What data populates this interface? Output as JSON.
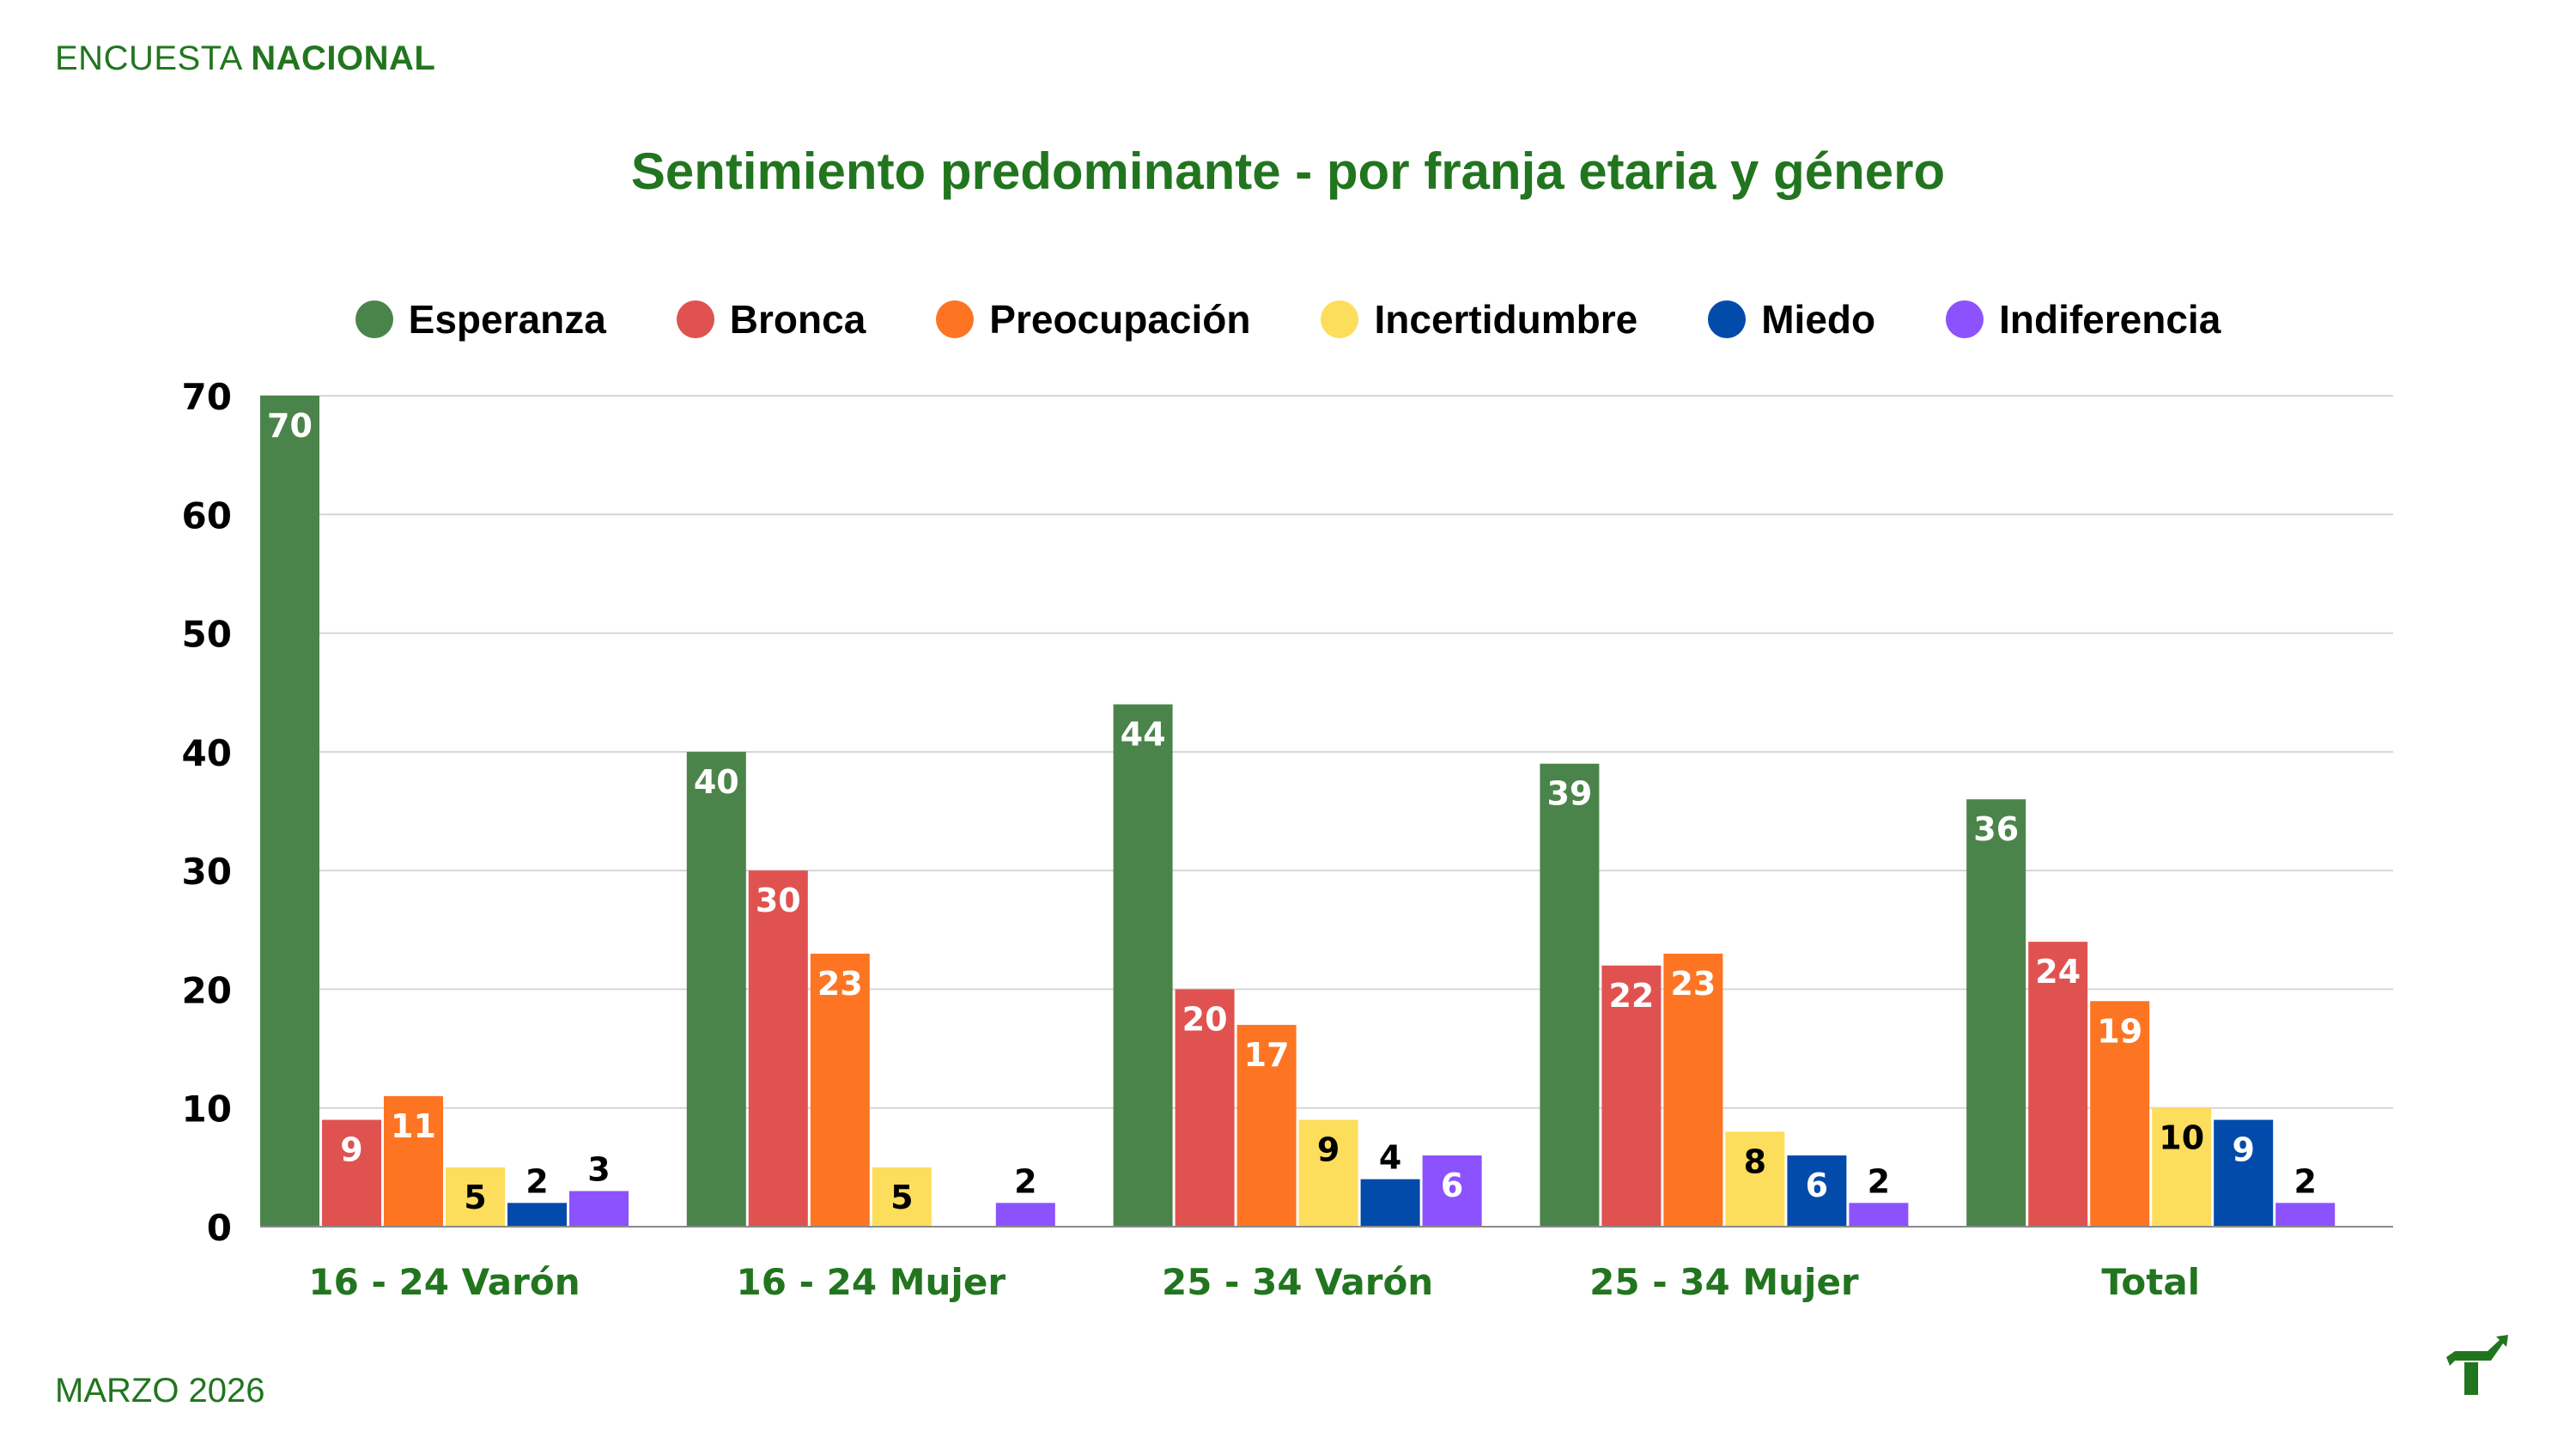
{
  "header": {
    "brand_light": "ENCUESTA",
    "brand_bold": "NACIONAL"
  },
  "footer": {
    "date": "MARZO 2026",
    "logo_icon": "trend-arrow-t-logo-icon"
  },
  "colors": {
    "brand_green": "#22751f",
    "grid": "#d6d6d6",
    "axis": "#8a8a8a"
  },
  "chart_data": {
    "type": "bar",
    "title": "Sentimiento predominante - por franja etaria y género",
    "xlabel": "",
    "ylabel": "",
    "ylim": [
      0,
      70
    ],
    "yticks": [
      0,
      10,
      20,
      30,
      40,
      50,
      60,
      70
    ],
    "grid": true,
    "legend_position": "top-center",
    "categories": [
      "16 - 24 Varón",
      "16 - 24 Mujer",
      "25 - 34 Varón",
      "25 - 34 Mujer",
      "Total"
    ],
    "series": [
      {
        "name": "Esperanza",
        "color": "#4b844a",
        "label_color": "#ffffff",
        "values": [
          70,
          40,
          44,
          39,
          36
        ]
      },
      {
        "name": "Bronca",
        "color": "#e05250",
        "label_color": "#ffffff",
        "values": [
          9,
          30,
          20,
          22,
          24
        ]
      },
      {
        "name": "Preocupación",
        "color": "#fd7522",
        "label_color": "#ffffff",
        "values": [
          11,
          23,
          17,
          23,
          19
        ]
      },
      {
        "name": "Incertidumbre",
        "color": "#fddd5c",
        "label_color": "#000000",
        "values": [
          5,
          5,
          9,
          8,
          10
        ]
      },
      {
        "name": "Miedo",
        "color": "#034bab",
        "label_color": "#ffffff",
        "values": [
          2,
          0,
          4,
          6,
          9
        ]
      },
      {
        "name": "Indiferencia",
        "color": "#8c52fe",
        "label_color": "#ffffff",
        "values": [
          3,
          2,
          6,
          2,
          2
        ]
      }
    ]
  }
}
